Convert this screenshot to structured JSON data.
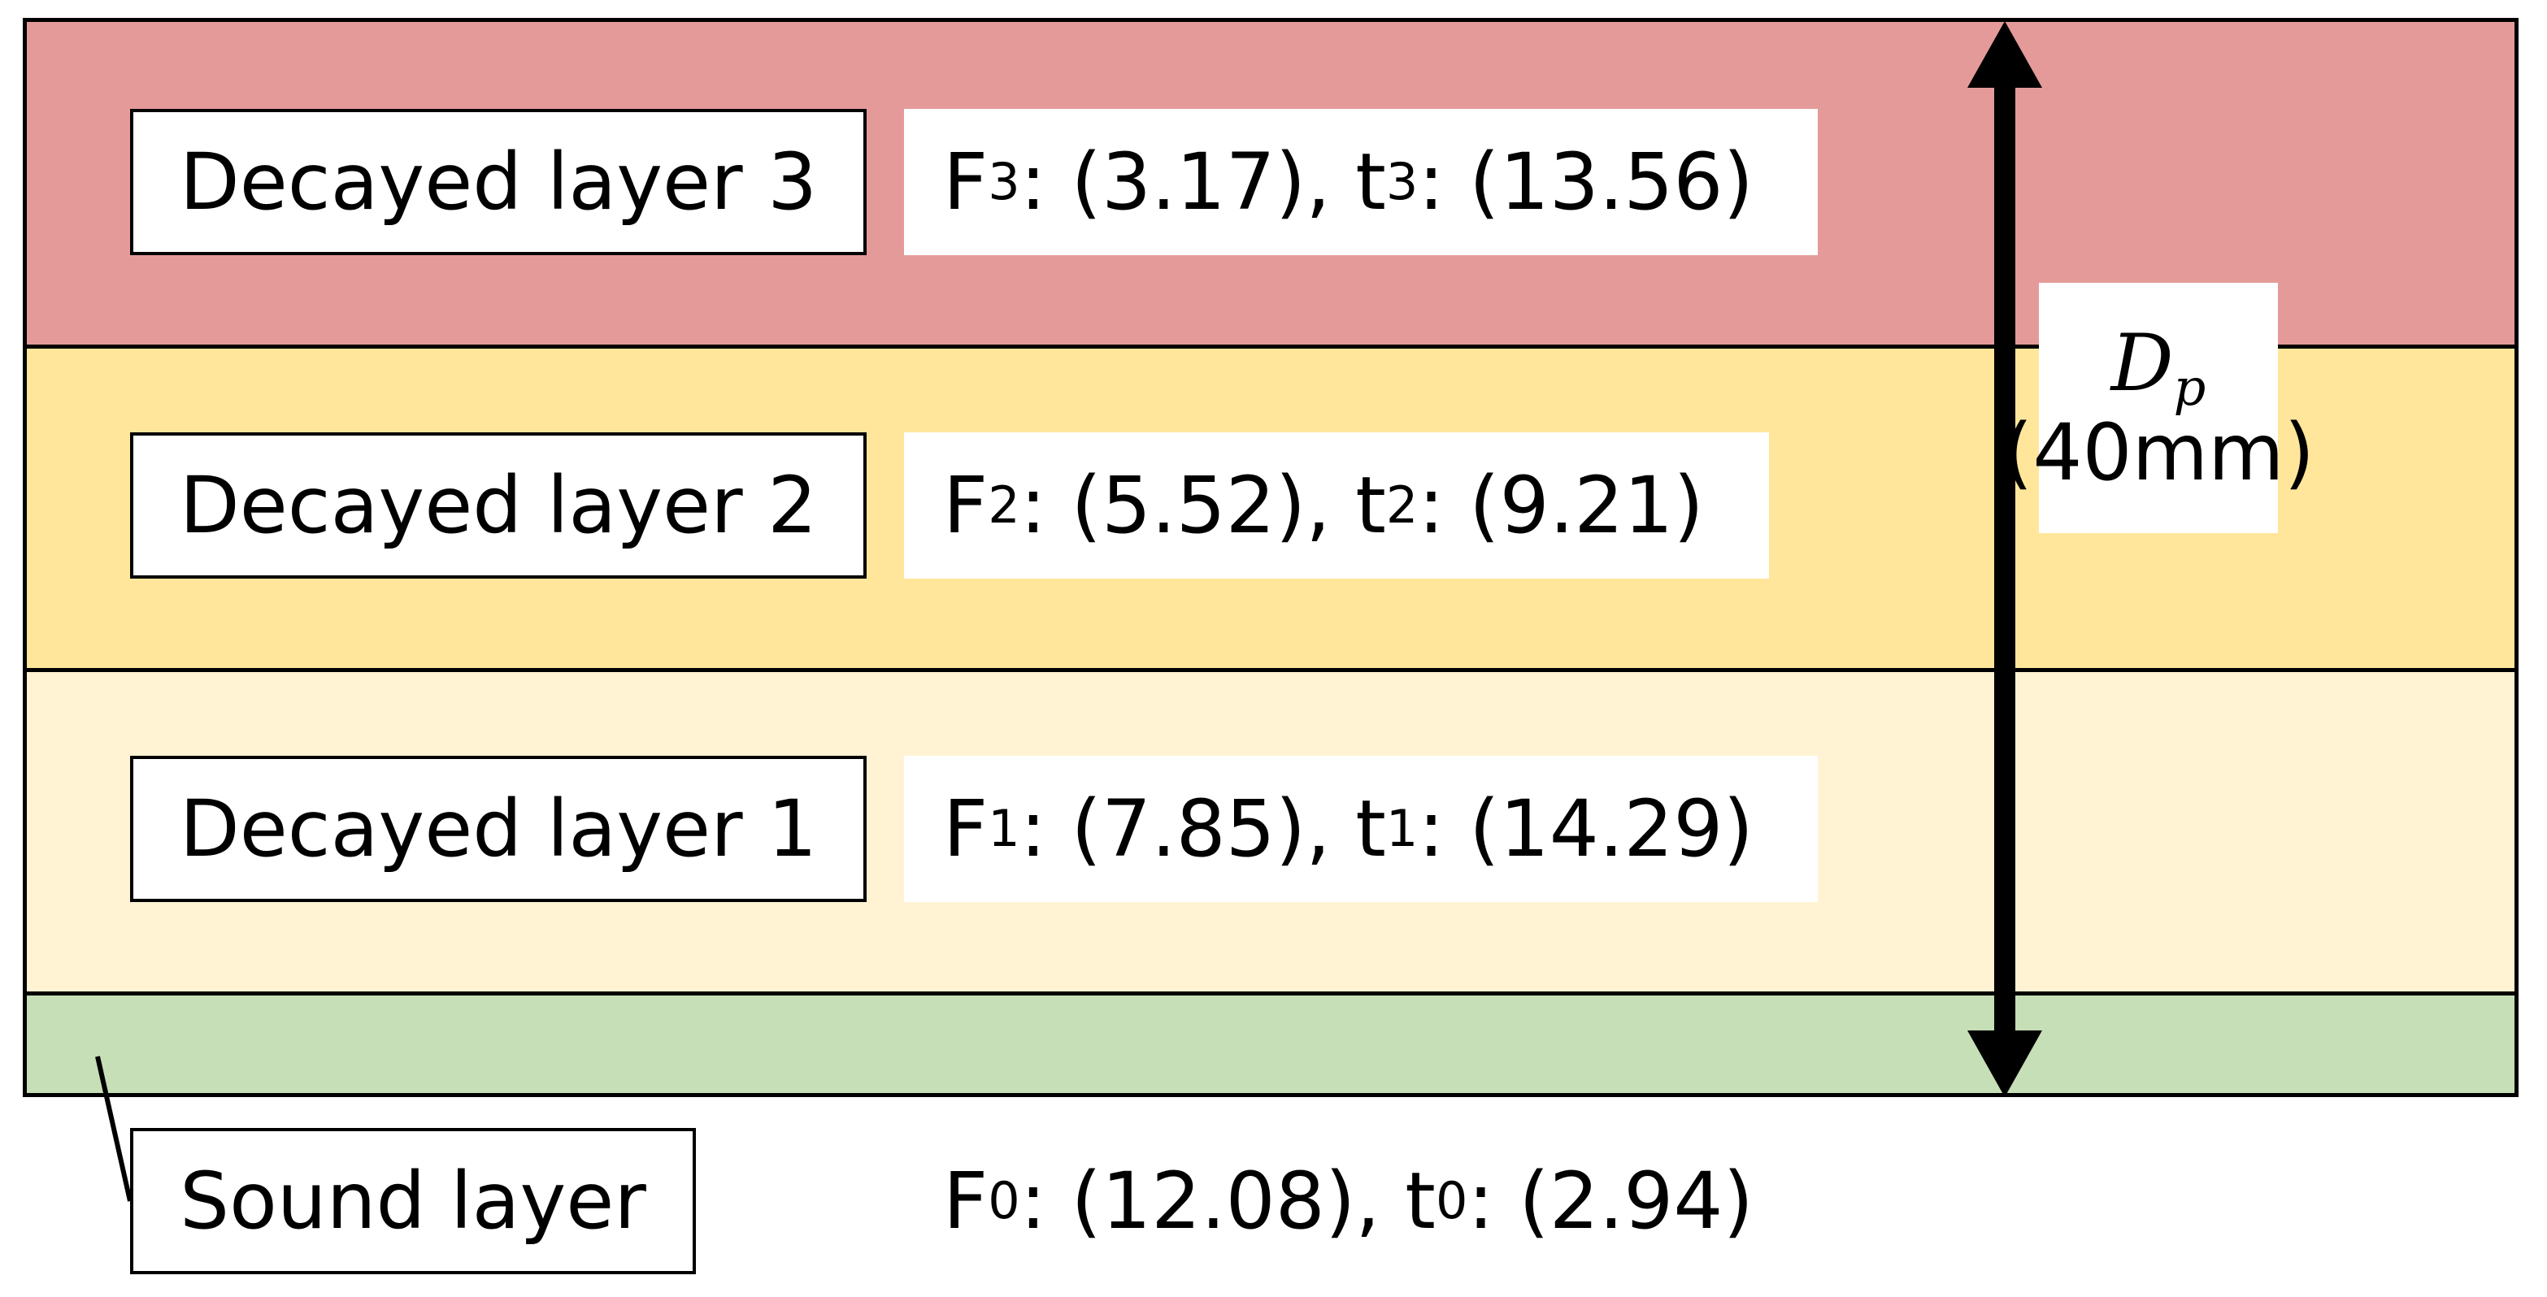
{
  "colors": {
    "decayed_layer_3": "#E59A9A",
    "decayed_layer_2": "#FFE69B",
    "decayed_layer_1": "#FFF3D3",
    "sound_layer": "#C6DFB7",
    "outline": "#000000"
  },
  "layers": [
    {
      "label": "Decayed layer 3",
      "F_sub": "3",
      "F_value": ": (3.17), t",
      "t_sub": "3",
      "t_value": ": (13.56)"
    },
    {
      "label": "Decayed layer 2",
      "F_sub": "2",
      "F_value": ": (5.52), t",
      "t_sub": "2",
      "t_value": ": (9.21)"
    },
    {
      "label": "Decayed layer 1",
      "F_sub": "1",
      "F_value": ": (7.85), t",
      "t_sub": "1",
      "t_value": ": (14.29)"
    },
    {
      "label": "Sound layer",
      "F_sub": "0",
      "F_value": ": (12.08), t",
      "t_sub": "0",
      "t_value": ": (2.94)"
    }
  ],
  "param_prefix": "F",
  "depth": {
    "symbol": "D",
    "symbol_sub": "p",
    "value": "(40mm)"
  },
  "icons": {
    "depth_arrow": "double-headed-vertical-arrow",
    "leader_line": "callout-leader-line"
  }
}
